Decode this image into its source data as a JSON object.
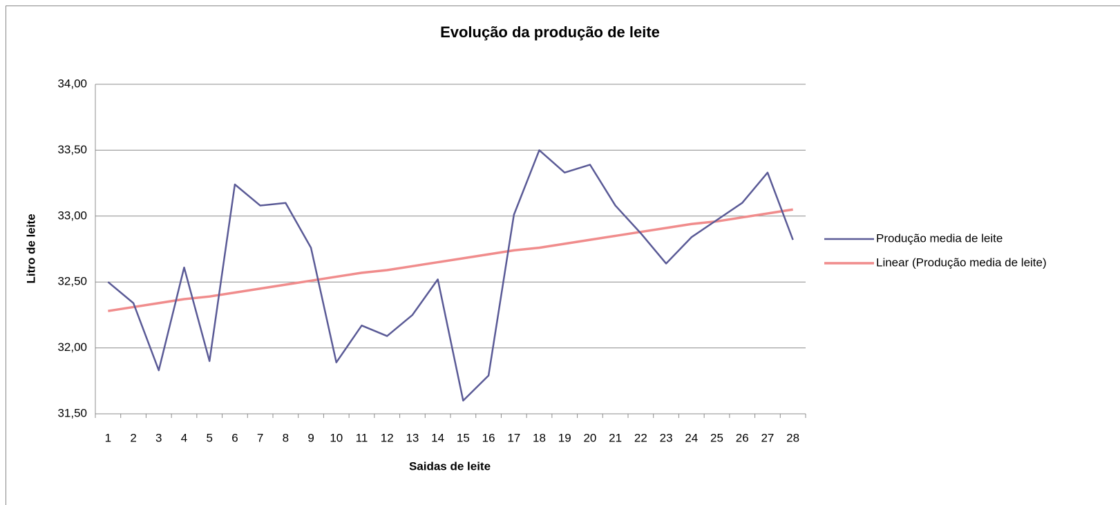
{
  "chart_data": {
    "type": "line",
    "title": "Evolução da produção de leite",
    "x_label": "Saidas de leite",
    "y_label": "Litro de leite",
    "categories": [
      "1",
      "2",
      "3",
      "4",
      "5",
      "6",
      "7",
      "8",
      "9",
      "10",
      "11",
      "12",
      "13",
      "14",
      "15",
      "16",
      "17",
      "18",
      "19",
      "20",
      "21",
      "22",
      "23",
      "24",
      "25",
      "26",
      "27",
      "28"
    ],
    "series": [
      {
        "name": "Produção media de leite",
        "color": "#5a5a96",
        "values": [
          32.5,
          32.34,
          31.83,
          32.61,
          31.9,
          33.24,
          33.08,
          33.1,
          32.76,
          31.89,
          32.17,
          32.09,
          32.25,
          32.52,
          31.6,
          31.79,
          33.01,
          33.5,
          33.33,
          33.39,
          33.08,
          32.87,
          32.64,
          32.84,
          32.97,
          33.1,
          33.33,
          32.82
        ]
      },
      {
        "name": "Linear (Produção media de leite)",
        "color": "#f08c8c",
        "values": [
          32.28,
          32.31,
          32.34,
          32.37,
          32.39,
          32.42,
          32.45,
          32.48,
          32.51,
          32.54,
          32.57,
          32.59,
          32.62,
          32.65,
          32.68,
          32.71,
          32.74,
          32.76,
          32.79,
          32.82,
          32.85,
          32.88,
          32.91,
          32.94,
          32.96,
          32.99,
          33.02,
          33.05
        ]
      }
    ],
    "ylim": [
      31.5,
      34
    ],
    "yticks": [
      {
        "value": 31.5,
        "label": "31,50"
      },
      {
        "value": 32,
        "label": "32,00"
      },
      {
        "value": 32.5,
        "label": "32,50"
      },
      {
        "value": 33,
        "label": "33,00"
      },
      {
        "value": 33.5,
        "label": "33,50"
      },
      {
        "value": 34,
        "label": "34,00"
      }
    ],
    "grid": true,
    "legend": "right"
  }
}
